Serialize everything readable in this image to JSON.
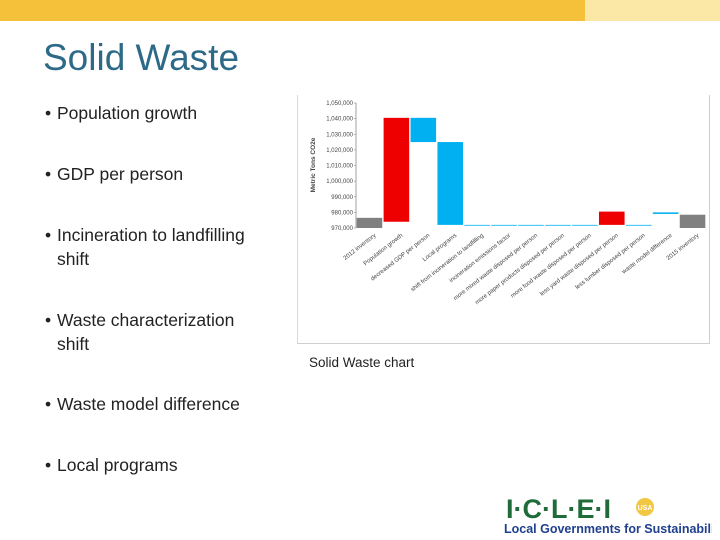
{
  "slide": {
    "title": "Solid Waste",
    "bullets": [
      [
        "Population growth"
      ],
      [
        "GDP per person"
      ],
      [
        "Incineration to landfilling",
        "shift"
      ],
      [
        "Waste characterization",
        "shift"
      ],
      [
        "Waste model difference"
      ],
      [
        "Local programs"
      ]
    ],
    "caption": "Solid Waste chart"
  },
  "logo": {
    "wordmark": "I·C·L·E·I",
    "badge": "USA",
    "tagline": "Local Governments for Sustainability"
  },
  "colors": {
    "topbar": "#f5c03a",
    "title": "#2d6a88",
    "red": "#ee0000",
    "blue": "#00b0f0",
    "gray": "#808080",
    "logo_green": "#1f6b3a",
    "logo_blue": "#1f3f8f"
  },
  "chart_data": {
    "type": "bar",
    "subtype": "waterfall",
    "ylabel": "Metric Tons CO2e",
    "ylim": [
      970000,
      1050000
    ],
    "y_ticks": [
      "970,000",
      "980,000",
      "990,000",
      "1,000,000",
      "1,010,000",
      "1,020,000",
      "1,030,000",
      "1,040,000",
      "1,050,000"
    ],
    "y_tick_values": [
      970000,
      980000,
      990000,
      1000000,
      1010000,
      1020000,
      1030000,
      1040000,
      1050000
    ],
    "categories": [
      "2012 inventory",
      "Population growth",
      "decreased GDP per person",
      "Local programs",
      "shift from incineration to landfilling",
      "incineration emissions factor",
      "more mixed waste disposed per person",
      "more paper products disposed per person",
      "more food waste disposed per person",
      "less yard waste disposed per person",
      "less lumber disposed per person",
      "waste model difference",
      "2015 inventory"
    ],
    "bars": [
      {
        "low": 970000,
        "high": 976500,
        "kind": "total"
      },
      {
        "low": 974000,
        "high": 1040500,
        "kind": "increase"
      },
      {
        "low": 1025000,
        "high": 1040500,
        "kind": "decrease"
      },
      {
        "low": 972000,
        "high": 1025000,
        "kind": "decrease"
      },
      {
        "low": 972000,
        "high": 972000,
        "kind": "decrease"
      },
      {
        "low": 972000,
        "high": 972000,
        "kind": "decrease"
      },
      {
        "low": 972000,
        "high": 972000,
        "kind": "decrease"
      },
      {
        "low": 972000,
        "high": 972000,
        "kind": "decrease"
      },
      {
        "low": 972000,
        "high": 972000,
        "kind": "decrease"
      },
      {
        "low": 972000,
        "high": 980500,
        "kind": "increase"
      },
      {
        "low": 972000,
        "high": 972000,
        "kind": "decrease"
      },
      {
        "low": 979000,
        "high": 980000,
        "kind": "decrease"
      },
      {
        "low": 970000,
        "high": 978500,
        "kind": "total"
      }
    ],
    "legend": "none",
    "grid": false
  }
}
